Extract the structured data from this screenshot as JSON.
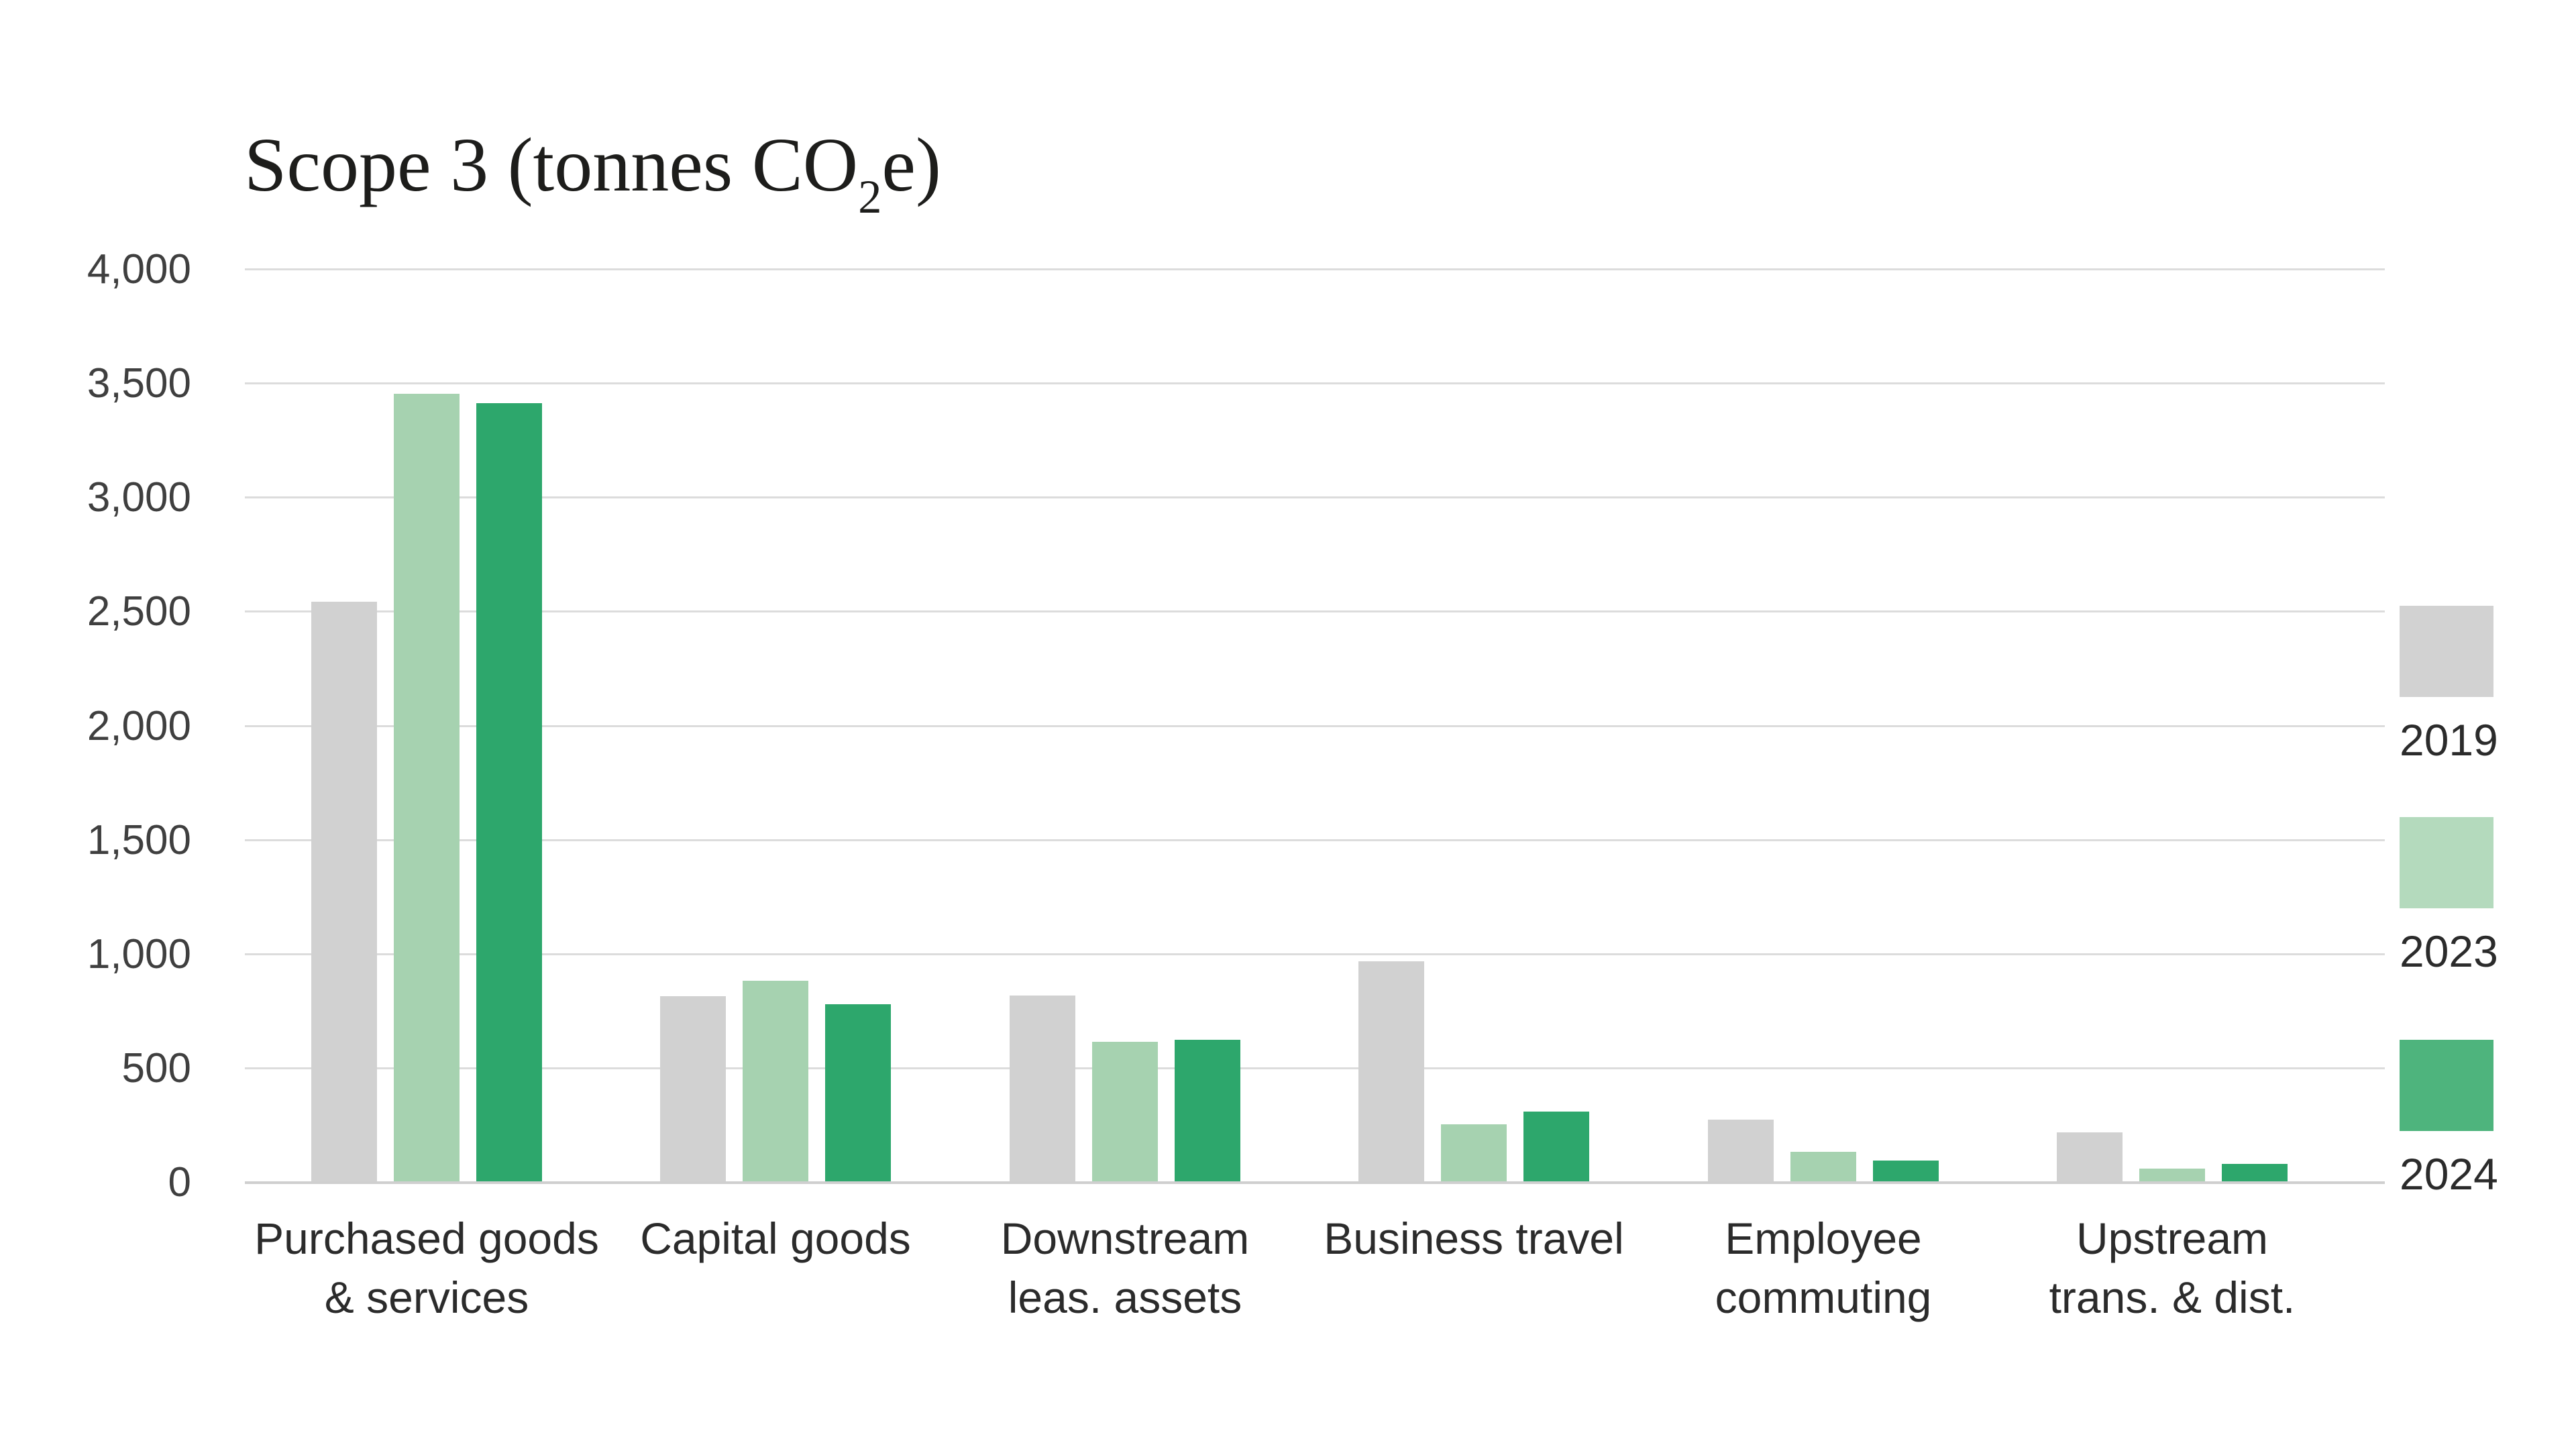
{
  "page": {
    "background": "#ffffff"
  },
  "title_parts": {
    "prefix": "Scope 3 (tonnes CO",
    "sub": "2",
    "suffix": "e)"
  },
  "y_axis": {
    "tick_labels": [
      "4,000",
      "3,500",
      "3,000",
      "2,500",
      "2,000",
      "1,500",
      "1,000",
      "500",
      "0"
    ],
    "tick_values": [
      4000,
      3500,
      3000,
      2500,
      2000,
      1500,
      1000,
      500,
      0
    ]
  },
  "categories": [
    {
      "label": "Purchased goods & services",
      "lines": [
        "Purchased goods",
        "& services"
      ]
    },
    {
      "label": "Capital goods",
      "lines": [
        "Capital goods"
      ]
    },
    {
      "label": "Downstream leas. assets",
      "lines": [
        "Downstream",
        "leas. assets"
      ]
    },
    {
      "label": "Business travel",
      "lines": [
        "Business travel"
      ]
    },
    {
      "label": "Employee commuting",
      "lines": [
        "Employee",
        "commuting"
      ]
    },
    {
      "label": "Upstream trans. & dist.",
      "lines": [
        "Upstream",
        "trans. & dist."
      ]
    }
  ],
  "legend": {
    "items": [
      {
        "label": "2019",
        "swatch_color": "#d2d2d2"
      },
      {
        "label": "2023",
        "swatch_color": "#b4dabd"
      },
      {
        "label": "2024",
        "swatch_color": "#4eb47d"
      }
    ]
  },
  "colors": {
    "grid": "#dcdcdc",
    "axis": "#cfcfcf",
    "label_text": "#2b2b2b",
    "tick_text": "#3f3f3f",
    "title_text": "#1d1d1b"
  },
  "chart_data": {
    "type": "bar",
    "title": "Scope 3 (tonnes CO₂e)",
    "categories": [
      "Purchased goods & services",
      "Capital goods",
      "Downstream leas. assets",
      "Business travel",
      "Employee commuting",
      "Upstream trans. & dist."
    ],
    "series": [
      {
        "name": "2019",
        "color": "#d1d1d1",
        "values": [
          2540,
          810,
          815,
          965,
          270,
          215
        ]
      },
      {
        "name": "2023",
        "color": "#a6d2b0",
        "values": [
          3450,
          880,
          610,
          250,
          130,
          55
        ]
      },
      {
        "name": "2024",
        "color": "#2da76c",
        "values": [
          3410,
          775,
          620,
          305,
          90,
          75
        ]
      }
    ],
    "ylim": [
      0,
      4000
    ],
    "ytick_step": 500,
    "grid": "horizontal-only",
    "legend_position": "right",
    "ylabel": "",
    "xlabel": ""
  }
}
